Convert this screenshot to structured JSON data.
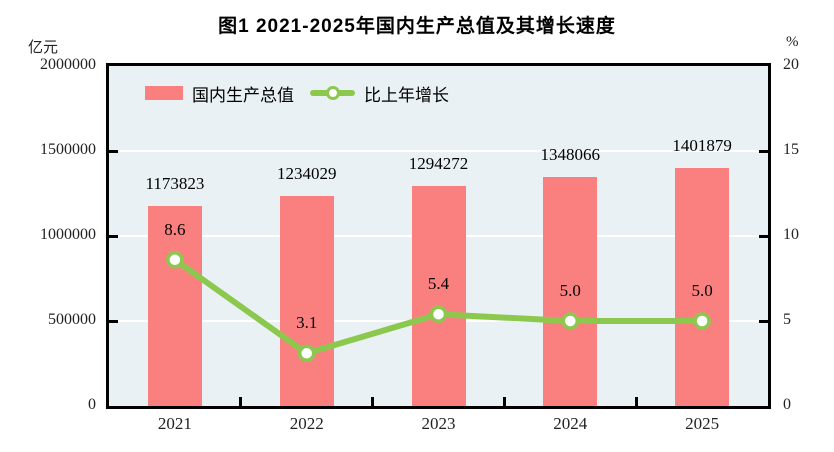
{
  "title": "图1  2021-2025年国内生产总值及其增长速度",
  "left_axis": {
    "unit": "亿元",
    "max": 2000000,
    "ticks": [
      "2000000",
      "1500000",
      "1000000",
      "500000",
      "0"
    ]
  },
  "right_axis": {
    "unit": "%",
    "max": 20,
    "ticks": [
      "20",
      "15",
      "10",
      "5",
      "0"
    ]
  },
  "legend": [
    {
      "label": "国内生产总值",
      "type": "bar"
    },
    {
      "label": "比上年增长",
      "type": "line"
    }
  ],
  "colors": {
    "bar": "#FA8080",
    "line": "#8DC84E",
    "plot_bg": "#E9F1F5",
    "grid": "#FFFFFF",
    "axis": "#000000",
    "marker_fill": "#FFFFFF",
    "text": "#000000"
  },
  "chart_data": {
    "type": "bar",
    "title": "图1 2021-2025年国内生产总值及其增长速度",
    "categories": [
      "2021",
      "2022",
      "2023",
      "2024",
      "2025"
    ],
    "series": [
      {
        "name": "国内生产总值",
        "type": "bar",
        "axis": "left",
        "unit": "亿元",
        "values": [
          1173823,
          1234029,
          1294272,
          1348066,
          1401879
        ]
      },
      {
        "name": "比上年增长",
        "type": "line",
        "axis": "right",
        "unit": "%",
        "values": [
          8.6,
          3.1,
          5.4,
          5.0,
          5.0
        ]
      }
    ],
    "value_labels": [
      "1173823",
      "1234029",
      "1294272",
      "1348066",
      "1401879"
    ],
    "growth_labels": [
      "8.6",
      "3.1",
      "5.4",
      "5.0",
      "5.0"
    ],
    "left_ylim": [
      0,
      2000000
    ],
    "right_ylim": [
      0,
      20
    ],
    "grid": true,
    "legend_position": "inside-top-left"
  }
}
